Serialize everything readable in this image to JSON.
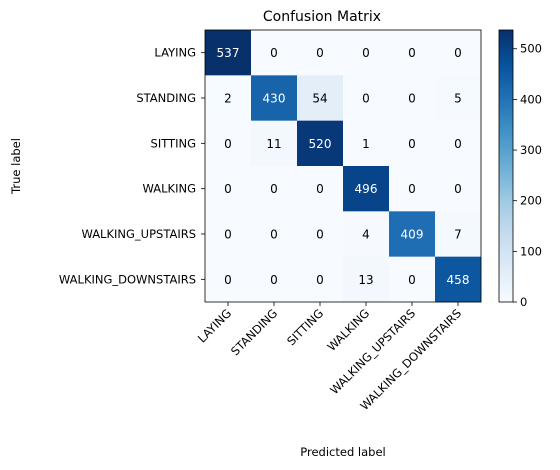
{
  "chart_data": {
    "type": "heatmap",
    "title": "Confusion Matrix",
    "xlabel": "Predicted label",
    "ylabel": "True label",
    "labels": [
      "LAYING",
      "STANDING",
      "SITTING",
      "WALKING",
      "WALKING_UPSTAIRS",
      "WALKING_DOWNSTAIRS"
    ],
    "matrix": [
      [
        537,
        0,
        0,
        0,
        0,
        0
      ],
      [
        2,
        430,
        54,
        0,
        0,
        5
      ],
      [
        0,
        11,
        520,
        1,
        0,
        0
      ],
      [
        0,
        0,
        0,
        496,
        0,
        0
      ],
      [
        0,
        0,
        0,
        4,
        409,
        7
      ],
      [
        0,
        0,
        0,
        13,
        0,
        458
      ]
    ],
    "colormap": "Blues",
    "colorbar": {
      "min": 0,
      "max": 537,
      "ticks": [
        0,
        100,
        200,
        300,
        400,
        500
      ]
    },
    "text_colors": {
      "dark_cell": "#ffffff",
      "light_cell": "#000000"
    },
    "cmap_low": "#f7fbff",
    "cmap_high": "#08306b"
  }
}
